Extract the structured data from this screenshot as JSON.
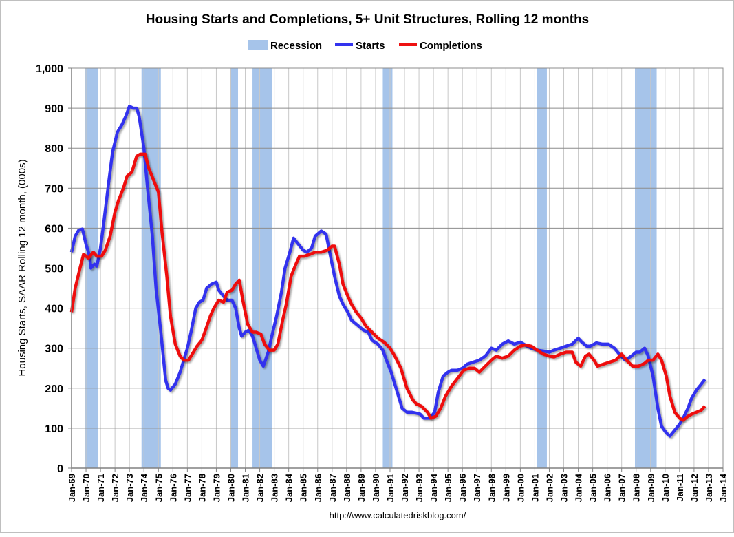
{
  "chart_data": {
    "type": "line",
    "title": "Housing Starts and Completions, 5+ Unit Structures, Rolling 12 months",
    "ylabel": "Housing Starts, SAAR Rolling 12 month, (000s)",
    "xlabel": "",
    "source": "http://www.calculatedriskblog.com/",
    "ylim": [
      0,
      1000
    ],
    "yticks": [
      0,
      100,
      200,
      300,
      400,
      500,
      600,
      700,
      800,
      900,
      1000
    ],
    "ytick_labels": [
      "0",
      "100",
      "200",
      "300",
      "400",
      "500",
      "600",
      "700",
      "800",
      "900",
      "1,000"
    ],
    "xlim": [
      "1969-01",
      "2014-01"
    ],
    "xtick_labels": [
      "Jan-69",
      "Jan-70",
      "Jan-71",
      "Jan-72",
      "Jan-73",
      "Jan-74",
      "Jan-75",
      "Jan-76",
      "Jan-77",
      "Jan-78",
      "Jan-79",
      "Jan-80",
      "Jan-81",
      "Jan-82",
      "Jan-83",
      "Jan-84",
      "Jan-85",
      "Jan-86",
      "Jan-87",
      "Jan-88",
      "Jan-89",
      "Jan-90",
      "Jan-91",
      "Jan-92",
      "Jan-93",
      "Jan-94",
      "Jan-95",
      "Jan-96",
      "Jan-97",
      "Jan-98",
      "Jan-99",
      "Jan-00",
      "Jan-01",
      "Jan-02",
      "Jan-03",
      "Jan-04",
      "Jan-05",
      "Jan-06",
      "Jan-07",
      "Jan-08",
      "Jan-09",
      "Jan-10",
      "Jan-11",
      "Jan-12",
      "Jan-13",
      "Jan-14"
    ],
    "grid": true,
    "legend_placement": "top",
    "legend": [
      "Recession",
      "Starts",
      "Completions"
    ],
    "colors": {
      "recession": "#a6c4ea",
      "starts": "#3333ee",
      "completions": "#ee1111"
    },
    "recessions": [
      [
        "1969-12",
        "1970-11"
      ],
      [
        "1973-11",
        "1975-03"
      ],
      [
        "1980-01",
        "1980-07"
      ],
      [
        "1981-07",
        "1982-11"
      ],
      [
        "1990-07",
        "1991-03"
      ],
      [
        "2001-03",
        "2001-11"
      ],
      [
        "2007-12",
        "2009-06"
      ]
    ],
    "series": [
      {
        "name": "Starts",
        "points": [
          [
            "1969-01",
            540
          ],
          [
            "1969-04",
            580
          ],
          [
            "1969-07",
            595
          ],
          [
            "1969-10",
            598
          ],
          [
            "1970-01",
            560
          ],
          [
            "1970-04",
            530
          ],
          [
            "1970-05",
            500
          ],
          [
            "1970-08",
            510
          ],
          [
            "1970-10",
            505
          ],
          [
            "1971-01",
            550
          ],
          [
            "1971-04",
            620
          ],
          [
            "1971-08",
            720
          ],
          [
            "1971-11",
            790
          ],
          [
            "1972-03",
            840
          ],
          [
            "1972-07",
            860
          ],
          [
            "1972-10",
            880
          ],
          [
            "1973-01",
            905
          ],
          [
            "1973-04",
            900
          ],
          [
            "1973-07",
            900
          ],
          [
            "1973-09",
            880
          ],
          [
            "1974-01",
            800
          ],
          [
            "1974-04",
            700
          ],
          [
            "1974-08",
            580
          ],
          [
            "1974-11",
            450
          ],
          [
            "1975-03",
            340
          ],
          [
            "1975-07",
            220
          ],
          [
            "1975-09",
            200
          ],
          [
            "1975-11",
            195
          ],
          [
            "1976-03",
            210
          ],
          [
            "1976-07",
            240
          ],
          [
            "1976-10",
            270
          ],
          [
            "1977-01",
            300
          ],
          [
            "1977-04",
            340
          ],
          [
            "1977-08",
            400
          ],
          [
            "1977-11",
            415
          ],
          [
            "1978-02",
            420
          ],
          [
            "1978-05",
            450
          ],
          [
            "1978-09",
            460
          ],
          [
            "1979-01",
            465
          ],
          [
            "1979-03",
            445
          ],
          [
            "1979-07",
            430
          ],
          [
            "1979-10",
            420
          ],
          [
            "1980-02",
            420
          ],
          [
            "1980-05",
            400
          ],
          [
            "1980-08",
            350
          ],
          [
            "1980-10",
            330
          ],
          [
            "1981-01",
            340
          ],
          [
            "1981-04",
            345
          ],
          [
            "1981-07",
            330
          ],
          [
            "1981-09",
            310
          ],
          [
            "1982-01",
            270
          ],
          [
            "1982-04",
            255
          ],
          [
            "1982-08",
            290
          ],
          [
            "1982-11",
            330
          ],
          [
            "1983-03",
            380
          ],
          [
            "1983-07",
            440
          ],
          [
            "1983-10",
            500
          ],
          [
            "1984-02",
            540
          ],
          [
            "1984-05",
            575
          ],
          [
            "1984-09",
            560
          ],
          [
            "1985-01",
            545
          ],
          [
            "1985-04",
            540
          ],
          [
            "1985-08",
            550
          ],
          [
            "1985-11",
            580
          ],
          [
            "1986-04",
            593
          ],
          [
            "1986-08",
            585
          ],
          [
            "1986-11",
            540
          ],
          [
            "1987-03",
            480
          ],
          [
            "1987-07",
            430
          ],
          [
            "1987-10",
            410
          ],
          [
            "1988-02",
            390
          ],
          [
            "1988-05",
            370
          ],
          [
            "1988-09",
            360
          ],
          [
            "1988-11",
            355
          ],
          [
            "1989-03",
            345
          ],
          [
            "1989-07",
            340
          ],
          [
            "1989-10",
            320
          ],
          [
            "1990-03",
            310
          ],
          [
            "1990-07",
            295
          ],
          [
            "1990-10",
            270
          ],
          [
            "1991-02",
            240
          ],
          [
            "1991-07",
            190
          ],
          [
            "1991-11",
            150
          ],
          [
            "1992-03",
            140
          ],
          [
            "1992-07",
            140
          ],
          [
            "1992-10",
            138
          ],
          [
            "1993-02",
            135
          ],
          [
            "1993-05",
            125
          ],
          [
            "1993-10",
            125
          ],
          [
            "1994-02",
            140
          ],
          [
            "1994-05",
            190
          ],
          [
            "1994-09",
            230
          ],
          [
            "1995-01",
            240
          ],
          [
            "1995-04",
            245
          ],
          [
            "1995-09",
            245
          ],
          [
            "1996-01",
            250
          ],
          [
            "1996-05",
            260
          ],
          [
            "1996-10",
            265
          ],
          [
            "1997-03",
            270
          ],
          [
            "1997-08",
            280
          ],
          [
            "1998-01",
            300
          ],
          [
            "1998-05",
            295
          ],
          [
            "1998-10",
            310
          ],
          [
            "1999-03",
            318
          ],
          [
            "1999-08",
            310
          ],
          [
            "2000-01",
            315
          ],
          [
            "2000-05",
            308
          ],
          [
            "2000-10",
            300
          ],
          [
            "2001-03",
            295
          ],
          [
            "2001-08",
            293
          ],
          [
            "2002-01",
            290
          ],
          [
            "2002-05",
            295
          ],
          [
            "2002-10",
            300
          ],
          [
            "2003-03",
            305
          ],
          [
            "2003-08",
            310
          ],
          [
            "2004-01",
            325
          ],
          [
            "2004-04",
            315
          ],
          [
            "2004-08",
            305
          ],
          [
            "2004-11",
            305
          ],
          [
            "2005-04",
            313
          ],
          [
            "2005-09",
            310
          ],
          [
            "2006-02",
            310
          ],
          [
            "2006-07",
            300
          ],
          [
            "2006-11",
            285
          ],
          [
            "2007-04",
            270
          ],
          [
            "2007-09",
            280
          ],
          [
            "2008-01",
            290
          ],
          [
            "2008-04",
            290
          ],
          [
            "2008-08",
            300
          ],
          [
            "2008-11",
            280
          ],
          [
            "2009-03",
            230
          ],
          [
            "2009-07",
            150
          ],
          [
            "2009-10",
            105
          ],
          [
            "2010-02",
            88
          ],
          [
            "2010-05",
            80
          ],
          [
            "2010-09",
            95
          ],
          [
            "2011-01",
            110
          ],
          [
            "2011-04",
            125
          ],
          [
            "2011-08",
            150
          ],
          [
            "2011-11",
            175
          ],
          [
            "2012-03",
            195
          ],
          [
            "2012-07",
            210
          ],
          [
            "2012-10",
            222
          ]
        ]
      },
      {
        "name": "Completions",
        "points": [
          [
            "1969-01",
            390
          ],
          [
            "1969-04",
            450
          ],
          [
            "1969-08",
            500
          ],
          [
            "1969-11",
            535
          ],
          [
            "1970-03",
            525
          ],
          [
            "1970-07",
            540
          ],
          [
            "1970-10",
            530
          ],
          [
            "1971-02",
            530
          ],
          [
            "1971-05",
            545
          ],
          [
            "1971-09",
            580
          ],
          [
            "1972-01",
            640
          ],
          [
            "1972-04",
            670
          ],
          [
            "1972-08",
            700
          ],
          [
            "1972-11",
            730
          ],
          [
            "1973-03",
            740
          ],
          [
            "1973-07",
            780
          ],
          [
            "1973-10",
            785
          ],
          [
            "1974-02",
            785
          ],
          [
            "1974-05",
            750
          ],
          [
            "1974-09",
            720
          ],
          [
            "1975-01",
            690
          ],
          [
            "1975-04",
            590
          ],
          [
            "1975-08",
            480
          ],
          [
            "1975-11",
            380
          ],
          [
            "1976-03",
            310
          ],
          [
            "1976-07",
            280
          ],
          [
            "1976-10",
            270
          ],
          [
            "1977-02",
            270
          ],
          [
            "1977-05",
            285
          ],
          [
            "1977-09",
            305
          ],
          [
            "1978-01",
            320
          ],
          [
            "1978-04",
            345
          ],
          [
            "1978-08",
            380
          ],
          [
            "1978-11",
            400
          ],
          [
            "1979-03",
            420
          ],
          [
            "1979-07",
            415
          ],
          [
            "1979-10",
            440
          ],
          [
            "1980-02",
            445
          ],
          [
            "1980-05",
            460
          ],
          [
            "1980-08",
            470
          ],
          [
            "1980-11",
            420
          ],
          [
            "1981-03",
            360
          ],
          [
            "1981-07",
            340
          ],
          [
            "1981-10",
            340
          ],
          [
            "1982-02",
            335
          ],
          [
            "1982-05",
            310
          ],
          [
            "1982-09",
            295
          ],
          [
            "1983-01",
            295
          ],
          [
            "1983-04",
            310
          ],
          [
            "1983-08",
            370
          ],
          [
            "1983-11",
            410
          ],
          [
            "1984-03",
            480
          ],
          [
            "1984-07",
            510
          ],
          [
            "1984-10",
            530
          ],
          [
            "1985-02",
            530
          ],
          [
            "1985-07",
            535
          ],
          [
            "1985-11",
            540
          ],
          [
            "1986-04",
            540
          ],
          [
            "1986-09",
            545
          ],
          [
            "1987-01",
            555
          ],
          [
            "1987-03",
            555
          ],
          [
            "1987-07",
            510
          ],
          [
            "1987-10",
            460
          ],
          [
            "1988-02",
            430
          ],
          [
            "1988-05",
            410
          ],
          [
            "1988-09",
            390
          ],
          [
            "1989-01",
            375
          ],
          [
            "1989-05",
            355
          ],
          [
            "1989-10",
            340
          ],
          [
            "1990-03",
            325
          ],
          [
            "1990-08",
            315
          ],
          [
            "1991-01",
            300
          ],
          [
            "1991-05",
            280
          ],
          [
            "1991-10",
            250
          ],
          [
            "1992-03",
            200
          ],
          [
            "1992-08",
            170
          ],
          [
            "1992-11",
            160
          ],
          [
            "1993-03",
            155
          ],
          [
            "1993-08",
            140
          ],
          [
            "1993-11",
            125
          ],
          [
            "1994-03",
            130
          ],
          [
            "1994-07",
            150
          ],
          [
            "1994-11",
            180
          ],
          [
            "1995-04",
            205
          ],
          [
            "1995-09",
            225
          ],
          [
            "1996-02",
            245
          ],
          [
            "1996-07",
            250
          ],
          [
            "1996-11",
            250
          ],
          [
            "1997-03",
            240
          ],
          [
            "1997-08",
            255
          ],
          [
            "1998-01",
            270
          ],
          [
            "1998-05",
            280
          ],
          [
            "1998-10",
            275
          ],
          [
            "1999-03",
            280
          ],
          [
            "1999-08",
            295
          ],
          [
            "2000-01",
            305
          ],
          [
            "2000-05",
            308
          ],
          [
            "2000-10",
            305
          ],
          [
            "2001-03",
            295
          ],
          [
            "2001-08",
            285
          ],
          [
            "2002-01",
            280
          ],
          [
            "2002-05",
            278
          ],
          [
            "2002-10",
            285
          ],
          [
            "2003-03",
            290
          ],
          [
            "2003-08",
            290
          ],
          [
            "2003-11",
            265
          ],
          [
            "2004-03",
            255
          ],
          [
            "2004-07",
            280
          ],
          [
            "2004-10",
            285
          ],
          [
            "2005-02",
            270
          ],
          [
            "2005-05",
            255
          ],
          [
            "2005-10",
            260
          ],
          [
            "2006-03",
            265
          ],
          [
            "2006-08",
            270
          ],
          [
            "2007-01",
            285
          ],
          [
            "2007-05",
            270
          ],
          [
            "2007-10",
            255
          ],
          [
            "2008-03",
            255
          ],
          [
            "2008-08",
            262
          ],
          [
            "2008-11",
            270
          ],
          [
            "2009-03",
            270
          ],
          [
            "2009-07",
            285
          ],
          [
            "2009-10",
            270
          ],
          [
            "2010-02",
            230
          ],
          [
            "2010-05",
            180
          ],
          [
            "2010-09",
            140
          ],
          [
            "2011-01",
            125
          ],
          [
            "2011-04",
            120
          ],
          [
            "2011-08",
            130
          ],
          [
            "2011-11",
            135
          ],
          [
            "2012-03",
            140
          ],
          [
            "2012-07",
            145
          ],
          [
            "2012-10",
            155
          ]
        ]
      }
    ]
  }
}
